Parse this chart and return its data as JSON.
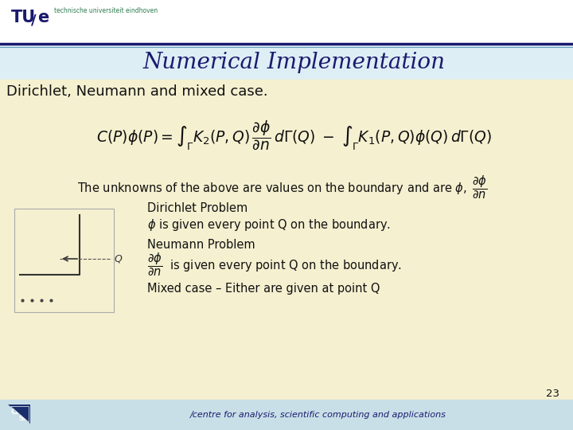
{
  "title": "Numerical Implementation",
  "subtitle": "Dirichlet, Neumann and mixed case.",
  "dirichlet_label": "Dirichlet Problem",
  "dirichlet_desc": " is given every point Q on the boundary.",
  "neumann_label": "Neumann Problem",
  "neumann_desc": "  is given every point Q on the boundary.",
  "mixed_label": "Mixed case – Either are given at point Q",
  "page_number": "23",
  "footer_text": "/centre for analysis, scientific computing and applications",
  "bg_white": "#ffffff",
  "bg_title": "#ddeef5",
  "bg_main": "#f5f0d0",
  "bg_footer": "#c8dfe8",
  "title_color": "#1a1a6e",
  "header_line_color": "#1a1a6e",
  "text_color": "#111111",
  "tue_text_color": "#1a1a6e",
  "tue_sub_color": "#2e7d52",
  "footer_label_color": "#1a1a6e"
}
